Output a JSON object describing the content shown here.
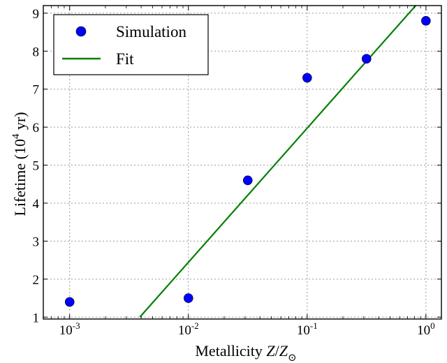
{
  "chart_data": {
    "type": "scatter",
    "xlabel": "Metallicity Z/Z⊙",
    "ylabel": "Lifetime (10⁴ yr)",
    "xscale": "log",
    "xlim": [
      0.0006,
      1.35
    ],
    "ylim": [
      0.95,
      9.2
    ],
    "x_ticks": [
      {
        "value": 0.001,
        "label": "10",
        "exp": "-3"
      },
      {
        "value": 0.01,
        "label": "10",
        "exp": "-2"
      },
      {
        "value": 0.1,
        "label": "10",
        "exp": "-1"
      },
      {
        "value": 1,
        "label": "10",
        "exp": "0"
      }
    ],
    "y_ticks": [
      1,
      2,
      3,
      4,
      5,
      6,
      7,
      8,
      9
    ],
    "grid": true,
    "legend_position": "top-left",
    "series": [
      {
        "name": "Simulation",
        "kind": "scatter",
        "color": "#0000ff",
        "x": [
          0.001,
          0.01,
          0.0316,
          0.1,
          0.316,
          1.0
        ],
        "y": [
          1.4,
          1.5,
          4.6,
          7.3,
          7.8,
          8.8
        ]
      },
      {
        "name": "Fit",
        "kind": "line",
        "color": "#008000",
        "x": [
          0.0039,
          0.82
        ],
        "y": [
          1.0,
          9.2
        ]
      }
    ]
  }
}
